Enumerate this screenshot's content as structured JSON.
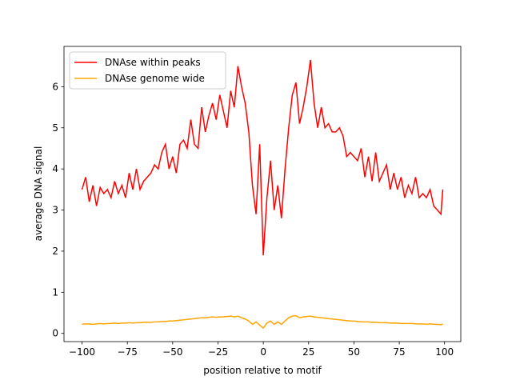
{
  "chart_data": {
    "type": "line",
    "xlabel": "position relative to motif",
    "ylabel": "average DNA signal",
    "x": [
      -100,
      -98,
      -96,
      -94,
      -92,
      -90,
      -88,
      -86,
      -84,
      -82,
      -80,
      -78,
      -76,
      -74,
      -72,
      -70,
      -68,
      -66,
      -64,
      -62,
      -60,
      -58,
      -56,
      -54,
      -52,
      -50,
      -48,
      -46,
      -44,
      -42,
      -40,
      -38,
      -36,
      -34,
      -32,
      -30,
      -28,
      -26,
      -24,
      -22,
      -20,
      -18,
      -16,
      -14,
      -12,
      -10,
      -8,
      -6,
      -4,
      -2,
      0,
      2,
      4,
      6,
      8,
      10,
      12,
      14,
      16,
      18,
      20,
      22,
      24,
      26,
      28,
      30,
      32,
      34,
      36,
      38,
      40,
      42,
      44,
      46,
      48,
      50,
      52,
      54,
      56,
      58,
      60,
      62,
      64,
      66,
      68,
      70,
      72,
      74,
      76,
      78,
      80,
      82,
      84,
      86,
      88,
      90,
      92,
      94,
      96,
      98,
      99
    ],
    "series": [
      {
        "name": "DNAse within peaks",
        "color": "#ff0000",
        "values": [
          3.5,
          3.8,
          3.2,
          3.6,
          3.1,
          3.55,
          3.4,
          3.5,
          3.3,
          3.7,
          3.4,
          3.6,
          3.3,
          3.9,
          3.5,
          4.0,
          3.5,
          3.7,
          3.8,
          3.9,
          4.1,
          4.0,
          4.4,
          4.6,
          4.0,
          4.3,
          3.9,
          4.6,
          4.7,
          4.5,
          5.2,
          4.6,
          4.5,
          5.5,
          4.9,
          5.3,
          5.6,
          5.2,
          5.8,
          5.4,
          5.0,
          5.9,
          5.5,
          6.5,
          6.0,
          5.6,
          4.9,
          3.6,
          2.9,
          4.6,
          1.9,
          3.3,
          4.2,
          3.0,
          3.6,
          2.8,
          4.0,
          5.0,
          5.8,
          6.1,
          5.1,
          5.5,
          6.0,
          6.65,
          5.6,
          5.0,
          5.5,
          5.0,
          5.1,
          4.9,
          4.9,
          5.0,
          4.8,
          4.3,
          4.4,
          4.3,
          4.2,
          4.5,
          3.8,
          4.3,
          3.7,
          4.4,
          3.7,
          3.9,
          4.1,
          3.5,
          3.9,
          3.5,
          3.8,
          3.3,
          3.6,
          3.4,
          3.8,
          3.3,
          3.4,
          3.3,
          3.5,
          3.1,
          3.0,
          2.9,
          3.5
        ]
      },
      {
        "name": "DNAse genome wide",
        "color": "#ffa500",
        "values": [
          0.22,
          0.23,
          0.23,
          0.22,
          0.23,
          0.24,
          0.23,
          0.24,
          0.24,
          0.25,
          0.24,
          0.25,
          0.25,
          0.26,
          0.25,
          0.26,
          0.26,
          0.27,
          0.27,
          0.27,
          0.28,
          0.28,
          0.29,
          0.29,
          0.3,
          0.3,
          0.31,
          0.32,
          0.33,
          0.34,
          0.35,
          0.36,
          0.37,
          0.38,
          0.38,
          0.39,
          0.4,
          0.39,
          0.4,
          0.4,
          0.41,
          0.42,
          0.4,
          0.42,
          0.38,
          0.35,
          0.3,
          0.22,
          0.28,
          0.2,
          0.13,
          0.25,
          0.3,
          0.22,
          0.28,
          0.22,
          0.3,
          0.38,
          0.42,
          0.43,
          0.38,
          0.4,
          0.41,
          0.42,
          0.4,
          0.39,
          0.38,
          0.37,
          0.36,
          0.35,
          0.34,
          0.33,
          0.32,
          0.31,
          0.3,
          0.3,
          0.29,
          0.28,
          0.28,
          0.28,
          0.27,
          0.27,
          0.26,
          0.26,
          0.26,
          0.25,
          0.25,
          0.25,
          0.24,
          0.24,
          0.24,
          0.24,
          0.23,
          0.23,
          0.23,
          0.22,
          0.23,
          0.22,
          0.22,
          0.21,
          0.23
        ]
      }
    ],
    "xlim": [
      -109.95,
      108.95
    ],
    "ylim": [
      -0.2,
      6.98
    ],
    "xticks": [
      {
        "value": -100,
        "label": "−100"
      },
      {
        "value": -75,
        "label": "−75"
      },
      {
        "value": -50,
        "label": "−50"
      },
      {
        "value": -25,
        "label": "−25"
      },
      0,
      25,
      50,
      75,
      100
    ],
    "yticks": [
      0,
      1,
      2,
      3,
      4,
      5,
      6
    ],
    "legend": "upper left"
  }
}
